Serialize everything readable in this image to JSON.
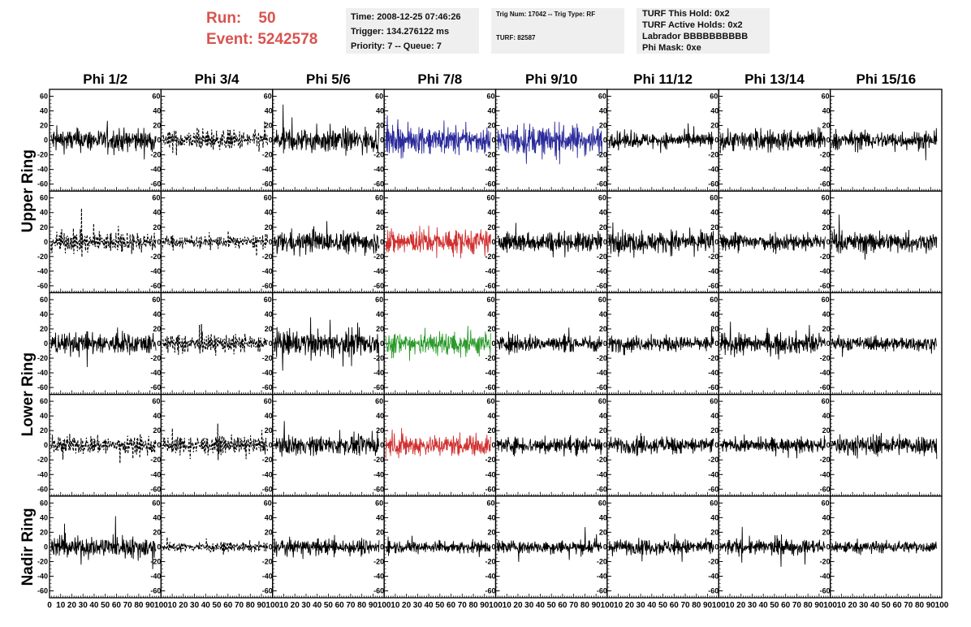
{
  "header": {
    "run_label": "Run:",
    "run_value": "50",
    "event_label": "Event:",
    "event_value": "5242578"
  },
  "info_boxes": {
    "time": "Time: 2008-12-25 07:46:26",
    "trigger": "Trigger: 134.276122 ms",
    "priority": "Priority: 7 -- Queue: 7",
    "trig_num": "Trig Num: 17042 -- Trig Type: RF",
    "turf": "TURF: 82587",
    "turf_this_hold": "TURF This Hold: 0x2",
    "turf_active_holds": "TURF Active Holds: 0x2",
    "labrador": "Labrador BBBBBBBBBB",
    "phi_mask": "Phi Mask: 0xe"
  },
  "chart_data": {
    "type": "line",
    "columns": [
      "Phi 1/2",
      "Phi 3/4",
      "Phi 5/6",
      "Phi 7/8",
      "Phi 9/10",
      "Phi 11/12",
      "Phi 13/14",
      "Phi 15/16"
    ],
    "row_groups": [
      {
        "label": "Upper Ring",
        "rows": 2
      },
      {
        "label": "Lower Ring",
        "rows": 2
      },
      {
        "label": "Nadir Ring",
        "rows": 1
      }
    ],
    "y_ticks": [
      "60",
      "40",
      "20",
      "0",
      "-20",
      "-40",
      "-60"
    ],
    "y_tick_values": [
      60,
      40,
      20,
      0,
      -20,
      -40,
      -60
    ],
    "ylim": [
      -65,
      65
    ],
    "x_ticks": [
      "0",
      "10",
      "20",
      "30",
      "40",
      "50",
      "60",
      "70",
      "80",
      "90",
      "100"
    ],
    "x_tick_values": [
      0,
      10,
      20,
      30,
      40,
      50,
      60,
      70,
      80,
      90,
      100
    ],
    "xlim": [
      0,
      100
    ],
    "samples": 260,
    "trace_range": [
      0,
      94
    ],
    "color_map": {
      "k": "#000000",
      "b": "#2a2a9a",
      "r": "#d0302f",
      "g": "#2a9a2a"
    },
    "panels": [
      [
        "k",
        "kd",
        "k",
        "b",
        "b",
        "k",
        "k",
        "k"
      ],
      [
        "kd",
        "kd",
        "k",
        "r",
        "k",
        "k",
        "k",
        "k"
      ],
      [
        "k",
        "kd",
        "k",
        "g",
        "k",
        "k",
        "k",
        "k"
      ],
      [
        "kd",
        "kd",
        "k",
        "r",
        "k",
        "k",
        "k",
        "k"
      ],
      [
        "k",
        "kd",
        "k",
        "k",
        "k",
        "k",
        "k",
        "k"
      ]
    ],
    "amplitudes": [
      [
        15,
        13,
        16,
        17,
        19,
        10,
        14,
        12
      ],
      [
        13,
        8,
        14,
        17,
        13,
        14,
        12,
        13
      ],
      [
        14,
        11,
        16,
        16,
        11,
        10,
        13,
        9
      ],
      [
        12,
        11,
        12,
        14,
        11,
        11,
        9,
        13
      ],
      [
        14,
        6,
        10,
        8,
        9,
        10,
        10,
        8
      ]
    ]
  }
}
